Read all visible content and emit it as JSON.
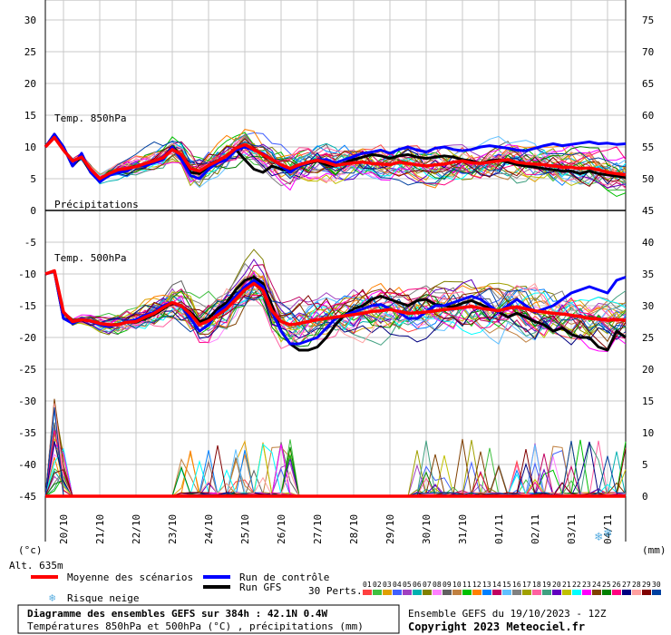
{
  "chart_data": {
    "type": "line",
    "left_axis_ticks": [
      "30",
      "25",
      "20",
      "15",
      "10",
      "5",
      "0",
      "-5",
      "-10",
      "-15",
      "-20",
      "-25",
      "-30",
      "-35",
      "-40",
      "-45"
    ],
    "right_axis_ticks": [
      "75",
      "70",
      "65",
      "60",
      "55",
      "50",
      "45",
      "40",
      "35",
      "30",
      "25",
      "20",
      "15",
      "10",
      "5",
      "0"
    ],
    "left_unit": "(°c)",
    "right_unit": "(mm)",
    "altitude": "Alt. 635m",
    "dates": [
      "20/10",
      "21/10",
      "22/10",
      "23/10",
      "24/10",
      "25/10",
      "26/10",
      "27/10",
      "28/10",
      "29/10",
      "30/10",
      "31/10",
      "01/11",
      "02/11",
      "03/11",
      "04/11"
    ],
    "panel_labels": {
      "t850": "Temp. 850hPa",
      "precip": "Précipitations",
      "t500": "Temp. 500hPa"
    },
    "x": [
      0,
      6,
      12,
      18,
      24,
      30,
      36,
      42,
      48,
      54,
      60,
      66,
      72,
      78,
      84,
      90,
      96,
      102,
      108,
      114,
      120,
      126,
      132,
      138,
      144,
      150,
      156,
      162,
      168,
      174,
      180,
      186,
      192,
      198,
      204,
      210,
      216,
      222,
      228,
      234,
      240,
      246,
      252,
      258,
      264,
      270,
      276,
      282,
      288,
      294,
      300,
      306,
      312,
      318,
      324,
      330,
      336,
      342,
      348,
      354,
      360,
      366,
      372,
      378,
      384
    ],
    "series": [
      {
        "name": "Moyenne des scénarios",
        "color": "#ff0000",
        "t850": [
          10,
          11.5,
          9.5,
          7.8,
          8.4,
          6.5,
          5,
          5.8,
          6.4,
          6.6,
          6.9,
          7.4,
          7.8,
          8.3,
          9.6,
          8.8,
          6.6,
          6.2,
          7.1,
          7.8,
          8.6,
          9.8,
          10.4,
          9.6,
          8.8,
          8,
          7.2,
          6.6,
          7.2,
          7.6,
          7.9,
          7.6,
          7.1,
          7.3,
          7.5,
          7.6,
          7.4,
          7.3,
          7.2,
          7.6,
          7.4,
          7.2,
          7,
          7.2,
          7.3,
          7.6,
          7.8,
          7.5,
          7.4,
          7.6,
          7.8,
          8,
          7.6,
          7.4,
          7.3,
          7.2,
          7,
          6.8,
          6.8,
          6.6,
          6.7,
          6.4,
          6,
          5.8,
          5.6
        ],
        "t500": [
          -10,
          -9.5,
          -16,
          -17.5,
          -17.2,
          -17.4,
          -17.8,
          -18,
          -18,
          -17.6,
          -17.5,
          -16.8,
          -16.2,
          -15.3,
          -14.5,
          -15,
          -16.3,
          -18,
          -17.4,
          -16.5,
          -15.5,
          -14,
          -12.5,
          -11.5,
          -12.6,
          -15.8,
          -17.5,
          -18,
          -17.8,
          -17.5,
          -17.2,
          -17,
          -16.8,
          -16.6,
          -16.4,
          -16.2,
          -15.9,
          -15.8,
          -15.6,
          -15.9,
          -16.2,
          -16.1,
          -16,
          -15.8,
          -15.6,
          -15.5,
          -15.3,
          -15.1,
          -15.4,
          -15.6,
          -15.8,
          -15.4,
          -15.2,
          -15.5,
          -15.8,
          -16,
          -16.2,
          -16.3,
          -16.5,
          -16.7,
          -17,
          -17.1,
          -17.3,
          -17.2,
          -17.3
        ],
        "precip": [
          0,
          0,
          0,
          0,
          0,
          0,
          0,
          0,
          0,
          0,
          0,
          0,
          0,
          0,
          0,
          0,
          0,
          0,
          0,
          0,
          0,
          0,
          0,
          0,
          0,
          0,
          0,
          0,
          0,
          0,
          0,
          0,
          0,
          0,
          0,
          0,
          0,
          0,
          0,
          0,
          0,
          0,
          0,
          0,
          0,
          0,
          0,
          0,
          0,
          0,
          0,
          0,
          0,
          0,
          0,
          0,
          0,
          0,
          0,
          0,
          0,
          0,
          0,
          0,
          0
        ]
      },
      {
        "name": "Run de contrôle",
        "color": "#0000ff",
        "t850": [
          10,
          12,
          10,
          7,
          9,
          6,
          4.5,
          5.5,
          6,
          6.2,
          7,
          7,
          7.5,
          8,
          10,
          8,
          5.5,
          5,
          6.5,
          7.5,
          8,
          9.5,
          10,
          9.5,
          9,
          8,
          7,
          6,
          7,
          7.5,
          8,
          8,
          7.5,
          8,
          8.5,
          9,
          9.2,
          9.5,
          9,
          9.6,
          10,
          9.5,
          9.2,
          9.8,
          10,
          9.6,
          9.4,
          9.6,
          10,
          10.2,
          10,
          9.8,
          9.5,
          9.4,
          9.8,
          10.2,
          10.5,
          10.2,
          10.4,
          10.6,
          10.8,
          10.5,
          10.6,
          10.4,
          10.5
        ],
        "t500": [
          -10,
          -9.6,
          -17,
          -17.8,
          -17,
          -17.5,
          -18,
          -18.3,
          -18,
          -17.5,
          -17.2,
          -16.5,
          -16,
          -15,
          -14.5,
          -15,
          -17,
          -19,
          -18,
          -16,
          -15,
          -13.5,
          -12,
          -11,
          -12,
          -16,
          -19,
          -21,
          -21,
          -20.5,
          -20,
          -18.5,
          -17,
          -16.5,
          -16,
          -15.5,
          -15,
          -14.8,
          -15.5,
          -16,
          -17,
          -17,
          -16,
          -15,
          -15,
          -14.5,
          -14,
          -13.5,
          -14,
          -15,
          -16,
          -15,
          -14,
          -15,
          -16,
          -15.5,
          -15,
          -14,
          -13,
          -12.5,
          -12,
          -12.5,
          -13,
          -11,
          -10.5
        ],
        "precip": [
          0,
          0,
          0,
          0,
          0,
          0,
          0,
          0,
          0,
          0,
          0,
          0,
          0,
          0,
          0,
          0,
          0,
          0,
          0,
          0,
          0,
          0,
          0,
          0,
          0,
          0,
          0,
          0,
          0,
          0,
          0,
          0,
          0,
          0,
          0,
          0,
          0,
          0,
          0,
          0,
          0,
          0,
          0,
          0,
          0,
          0,
          0,
          0,
          0,
          0,
          0,
          0,
          0,
          0,
          0,
          0,
          0,
          0,
          0,
          0,
          0,
          0,
          0,
          0,
          0
        ]
      },
      {
        "name": "Run GFS",
        "color": "#000000",
        "t850": [
          10,
          12,
          10,
          7,
          8.5,
          6,
          4.8,
          5.8,
          6.4,
          6.6,
          7,
          7.2,
          7.8,
          8.2,
          10,
          8.6,
          6,
          5.8,
          7,
          7.6,
          8.6,
          9.6,
          8,
          6.5,
          6,
          7,
          6.5,
          6.2,
          7,
          7.4,
          7.8,
          7.2,
          7,
          7.5,
          8,
          8.4,
          8.8,
          8.6,
          8.2,
          8.6,
          8.8,
          8.4,
          8.2,
          8.4,
          8.6,
          8.4,
          8,
          7.8,
          7.4,
          7.8,
          8,
          7.6,
          7.2,
          7,
          6.8,
          6.6,
          6.4,
          6.2,
          6.2,
          5.8,
          6.2,
          5.8,
          5.6,
          5.4,
          5.2
        ],
        "t500": [
          -10,
          -9.6,
          -17,
          -17.6,
          -17.2,
          -17.4,
          -17.8,
          -18,
          -18,
          -17.6,
          -17.6,
          -17,
          -16.4,
          -15.5,
          -14.6,
          -15,
          -16,
          -17.5,
          -17,
          -15.5,
          -14.5,
          -12.5,
          -11,
          -10.5,
          -11.5,
          -15,
          -19,
          -21,
          -22,
          -22,
          -21.5,
          -20,
          -18,
          -16.5,
          -15.5,
          -15,
          -14,
          -13.5,
          -14,
          -14.5,
          -15,
          -14.2,
          -14,
          -14.8,
          -15,
          -15.2,
          -14.6,
          -14.2,
          -14.8,
          -15.4,
          -16,
          -16.8,
          -16.2,
          -16.8,
          -17.5,
          -18,
          -19,
          -18.5,
          -19.5,
          -20,
          -20,
          -21.5,
          -22,
          -19,
          -20
        ],
        "precip": [
          0,
          0,
          0,
          0,
          0,
          0,
          0,
          0,
          0,
          0,
          0,
          0,
          0,
          0,
          0,
          0,
          0,
          0,
          0,
          0,
          0,
          0,
          0,
          0,
          0,
          0,
          0,
          0,
          0,
          0,
          0,
          0,
          0,
          0,
          0,
          0,
          0,
          0,
          0,
          0,
          0,
          0,
          0,
          0,
          0,
          0,
          0,
          0,
          0,
          0,
          0,
          0,
          0,
          0,
          0,
          0,
          0,
          0,
          0,
          0,
          0,
          0,
          0,
          0,
          0
        ]
      }
    ],
    "perturbation_colors": [
      "#ff4040",
      "#40c040",
      "#e0a000",
      "#4060ff",
      "#a040c0",
      "#00b0b0",
      "#808000",
      "#ff80ff",
      "#606060",
      "#c08040",
      "#00c000",
      "#ff8000",
      "#0080ff",
      "#c00060",
      "#60c0ff",
      "#808080",
      "#a0a000",
      "#ff60a0",
      "#40a080",
      "#6000c0",
      "#c0c000",
      "#00ffff",
      "#ff00ff",
      "#804000",
      "#008000",
      "#ff0080",
      "#000080",
      "#ffa0a0",
      "#800000",
      "#0040a0"
    ],
    "perturbation_labels": [
      "01",
      "02",
      "03",
      "04",
      "05",
      "06",
      "07",
      "08",
      "09",
      "10",
      "11",
      "12",
      "13",
      "14",
      "15",
      "16",
      "17",
      "18",
      "19",
      "20",
      "21",
      "22",
      "23",
      "24",
      "25",
      "26",
      "27",
      "28",
      "29",
      "30"
    ],
    "perturbations_label": "30 Perts.",
    "snow_label": "Risque neige",
    "legend": {
      "mean": "Moyenne des scénarios",
      "control": "Run de contrôle",
      "gfs": "Run GFS"
    },
    "title": "Diagramme des ensembles GEFS sur 384h : 42.1N 0.4W",
    "subtitle": "Températures 850hPa et 500hPa (°C) , précipitations (mm)",
    "run_info": "Ensemble GEFS du 19/10/2023 - 12Z",
    "copyright": "Copyright 2023 Meteociel.fr"
  }
}
